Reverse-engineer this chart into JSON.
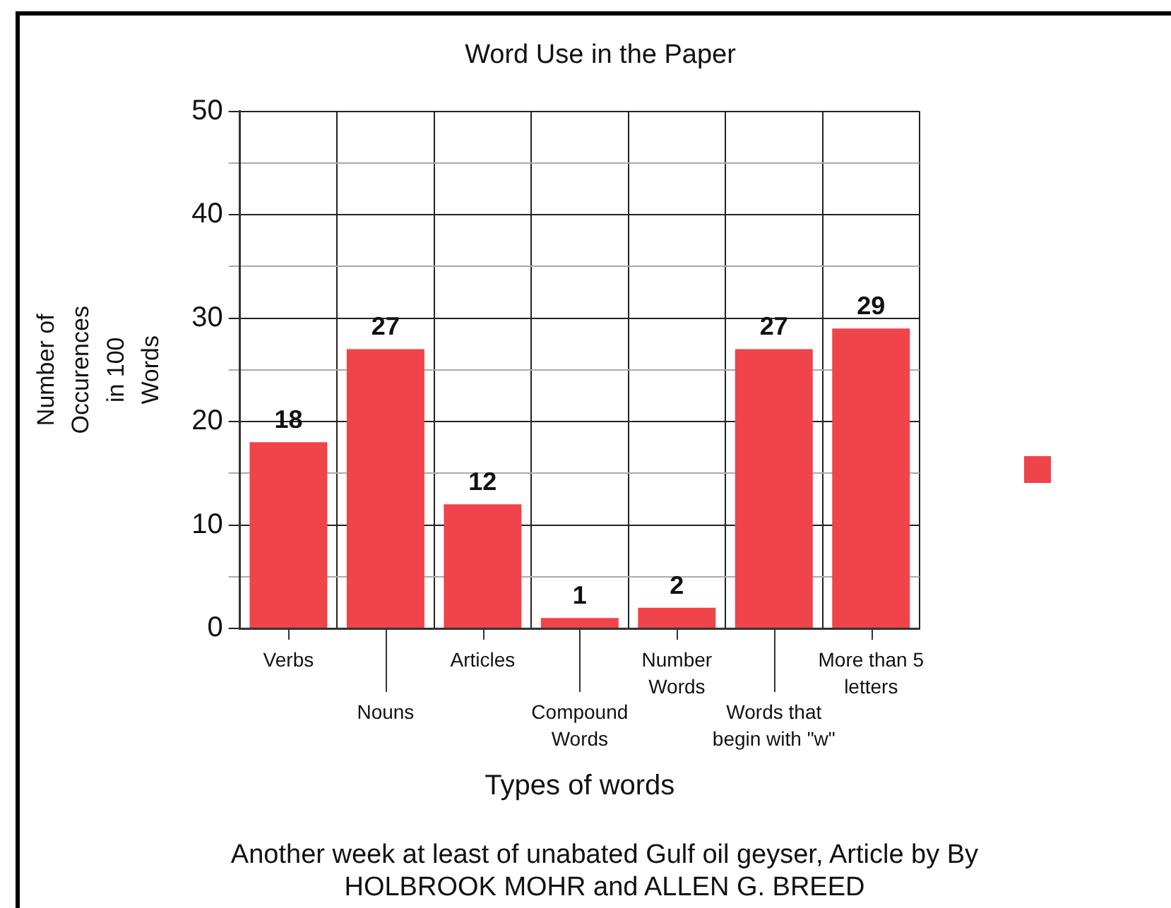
{
  "chart_data": {
    "type": "bar",
    "title": "Word Use in the Paper",
    "xlabel": "Types of words",
    "ylabel": "Number of Occurences in 100 Words",
    "categories": [
      "Verbs",
      "Nouns",
      "Articles",
      "Compound Words",
      "Number Words",
      "Words that begin with \"w\"",
      "More than 5 letters"
    ],
    "values": [
      18,
      27,
      12,
      1,
      2,
      27,
      29
    ],
    "color": "#ef4449",
    "ylim": [
      0,
      50
    ],
    "yticks": [
      0,
      {
        "value": 5,
        "label": null
      },
      10,
      {
        "value": 15,
        "label": null
      },
      20,
      {
        "value": 25,
        "label": null
      },
      30,
      {
        "value": 35,
        "label": null
      },
      40,
      {
        "value": 45,
        "label": null
      },
      50
    ],
    "grid": true,
    "data_labels": true,
    "annotations": [
      "Another week at least of unabated Gulf oil geyser, Article by By HOLBROOK MOHR and ALLEN G. BREED"
    ]
  }
}
